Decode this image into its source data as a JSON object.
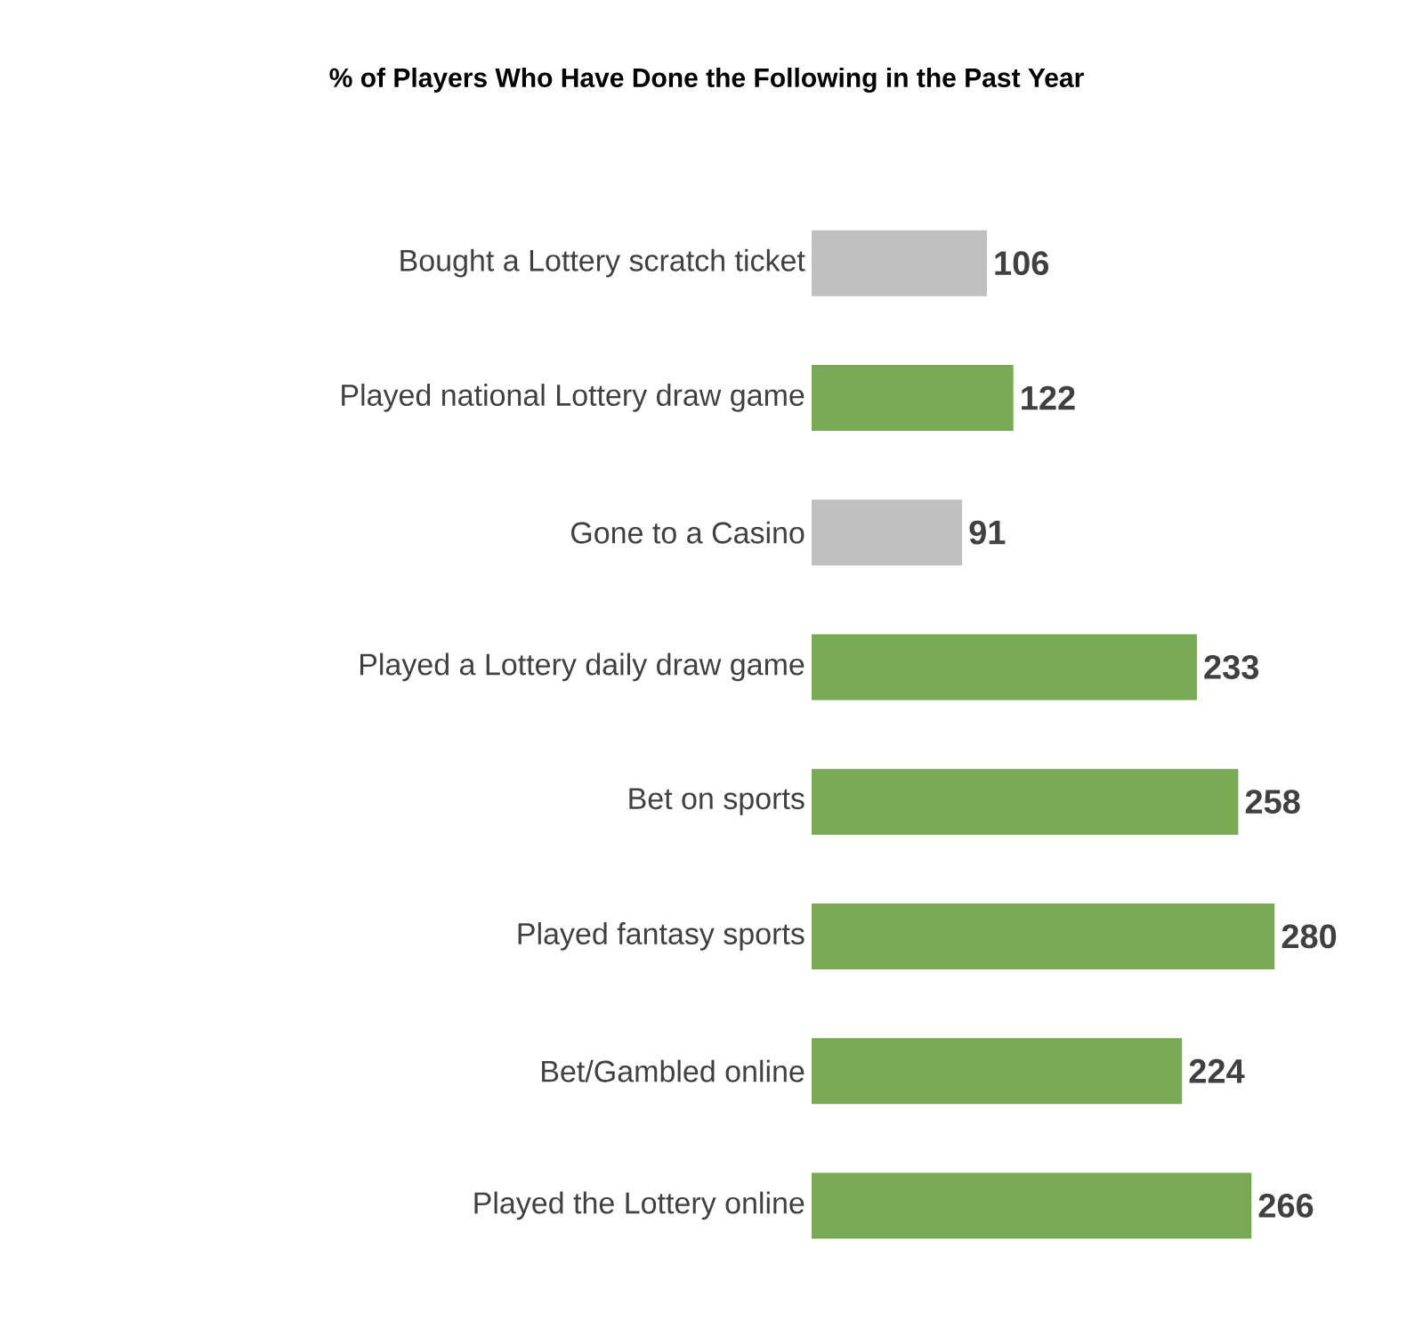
{
  "chart_data": {
    "type": "bar",
    "orientation": "horizontal",
    "title": "% of Players Who Have Done the Following in the Past Year",
    "categories": [
      "Bought a Lottery scratch ticket",
      "Played national Lottery draw game",
      "Gone to a Casino",
      "Played a Lottery daily draw game",
      "Bet on sports",
      "Played fantasy sports",
      "Bet/Gambled online",
      "Played the Lottery online"
    ],
    "values": [
      106,
      122,
      91,
      233,
      258,
      280,
      224,
      266
    ],
    "colors": [
      "#bfbfbf",
      "#78a953",
      "#bfbfbf",
      "#78a953",
      "#78a953",
      "#78a953",
      "#78a953",
      "#78a953"
    ],
    "data_labels": true
  }
}
